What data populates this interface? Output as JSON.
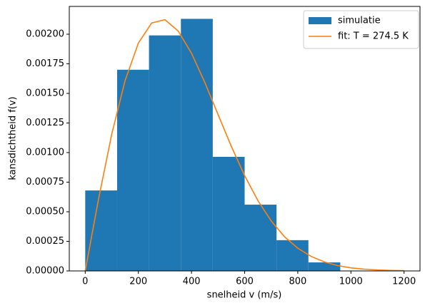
{
  "chart_data": {
    "type": "histogram",
    "xlabel": "snelheid v (m/s)",
    "ylabel": "kansdichtheid f(v)",
    "xlim": [
      -60,
      1260
    ],
    "ylim": [
      0,
      0.002235
    ],
    "xticks": [
      0,
      200,
      400,
      600,
      800,
      1000,
      1200
    ],
    "yticks": [
      {
        "value": 0,
        "label": "0.00000"
      },
      {
        "value": 0.00025,
        "label": "0.00025"
      },
      {
        "value": 0.0005,
        "label": "0.00050"
      },
      {
        "value": 0.00075,
        "label": "0.00075"
      },
      {
        "value": 0.001,
        "label": "0.00100"
      },
      {
        "value": 0.00125,
        "label": "0.00125"
      },
      {
        "value": 0.0015,
        "label": "0.00150"
      },
      {
        "value": 0.00175,
        "label": "0.00175"
      },
      {
        "value": 0.002,
        "label": "0.00200"
      }
    ],
    "legend": "upper right",
    "series": [
      {
        "name": "simulatie",
        "type": "histogram",
        "color": "#1f77b4",
        "bins": [
          0,
          120,
          240,
          360,
          480,
          600,
          720,
          840,
          960
        ],
        "values": [
          0.00068,
          0.0017,
          0.00199,
          0.00213,
          0.000964,
          0.00056,
          0.00026,
          7.2e-05
        ]
      },
      {
        "name": "fit: T = 274.5 K",
        "type": "line",
        "color": "#ff7f0e",
        "x": [
          0,
          50,
          100,
          150,
          200,
          250,
          300,
          350,
          400,
          450,
          500,
          550,
          600,
          650,
          700,
          750,
          800,
          850,
          900,
          950,
          1000,
          1050,
          1100,
          1150,
          1200
        ],
        "values": [
          0,
          0.000606,
          0.0011576,
          0.001608,
          0.001925,
          0.002095,
          0.002123,
          0.002027,
          0.001839,
          0.001593,
          0.001321,
          0.001052,
          0.000805,
          0.000594,
          0.000422,
          0.000289,
          0.000192,
          0.000123,
          7.6e-05,
          4.5e-05,
          2.6e-05,
          1.5e-05,
          8e-06,
          4e-06,
          2e-06
        ]
      }
    ]
  }
}
